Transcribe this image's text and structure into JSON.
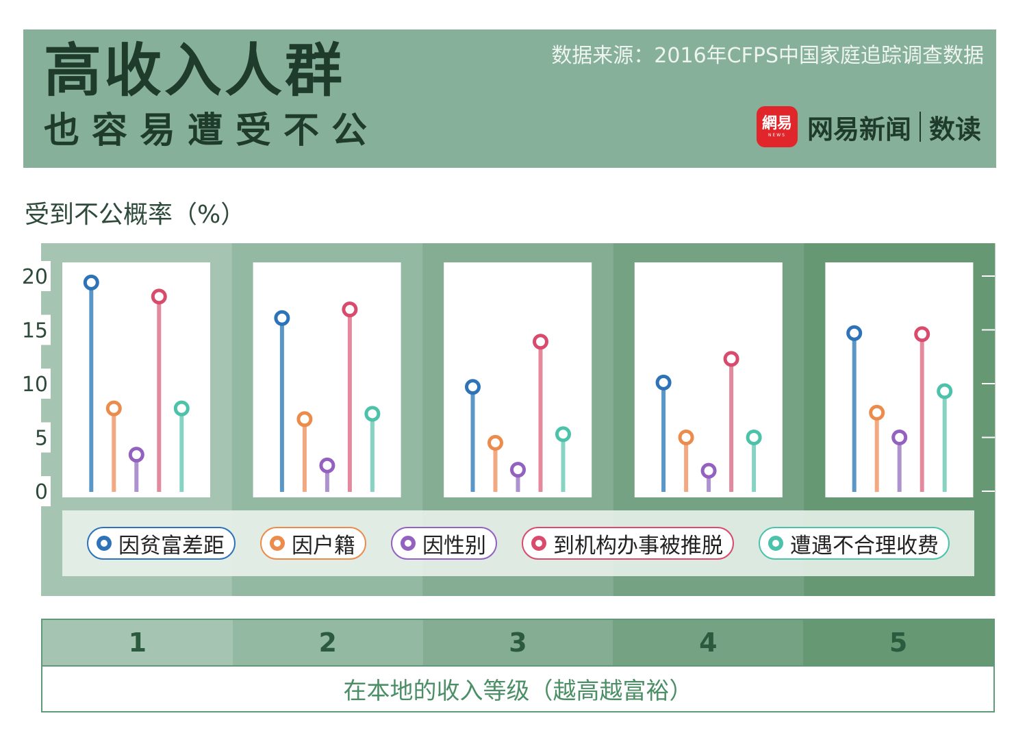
{
  "header": {
    "title_line1": "高收入人群",
    "title_line2": "也容易遭受不公",
    "source": "数据来源：2016年CFPS中国家庭追踪调查数据",
    "brand_logo": "網易",
    "brand_logo_sub": "NEWS",
    "brand_name": "网易新闻",
    "brand_sub": "数读"
  },
  "colors": {
    "header_bg": "#87b09a",
    "panel_bg": [
      "#a5c4b1",
      "#94b9a3",
      "#84ad93",
      "#74a283",
      "#659873"
    ],
    "series": [
      "#5a97c7",
      "#f2a981",
      "#ad92cf",
      "#e3899d",
      "#86d3c3"
    ],
    "marker_ring": [
      "#2e73b8",
      "#ec8c4c",
      "#9361c0",
      "#d94b6d",
      "#4cc2aa"
    ]
  },
  "chart_data": {
    "type": "lollipop",
    "ylabel": "受到不公概率（%）",
    "xlabel": "在本地的收入等级（越高越富裕）",
    "ylim": [
      0,
      20
    ],
    "yticks": [
      0,
      5,
      10,
      15,
      20
    ],
    "categories": [
      "1",
      "2",
      "3",
      "4",
      "5"
    ],
    "series": [
      {
        "name": "因贫富差距",
        "values": [
          19.4,
          16.1,
          9.7,
          10.1,
          14.7
        ]
      },
      {
        "name": "因户籍",
        "values": [
          7.7,
          6.7,
          4.5,
          5.0,
          7.3
        ]
      },
      {
        "name": "因性别",
        "values": [
          3.4,
          2.4,
          2.0,
          1.9,
          5.0
        ]
      },
      {
        "name": "到机构办事被推脱",
        "values": [
          18.1,
          16.9,
          13.9,
          12.3,
          14.6
        ]
      },
      {
        "name": "遭遇不合理收费",
        "values": [
          7.7,
          7.2,
          5.3,
          5.0,
          9.3
        ]
      }
    ]
  }
}
